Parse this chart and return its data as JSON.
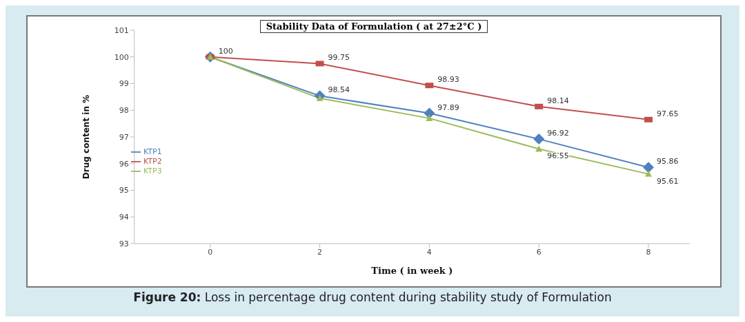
{
  "chart_data": {
    "type": "line",
    "title": "Stability Data of Formulation ( at 27±2°C )",
    "xlabel": "Time ( in week )",
    "ylabel": "Drug content in %",
    "categories": [
      "0",
      "2",
      "4",
      "6",
      "8"
    ],
    "ylim": [
      93,
      101
    ],
    "yticks": [
      93,
      94,
      95,
      96,
      97,
      98,
      99,
      100,
      101
    ],
    "grid": false,
    "legend": "left",
    "series": [
      {
        "name": "KTP1",
        "color": "#4f81bd",
        "marker": "diamond",
        "values": [
          100,
          98.54,
          97.89,
          96.92,
          95.86
        ],
        "value_labels": [
          null,
          "98.54",
          "97.89",
          "96.92",
          "95.86"
        ]
      },
      {
        "name": "KTP2",
        "color": "#c0504d",
        "marker": "square",
        "values": [
          100,
          99.75,
          98.93,
          98.14,
          97.65
        ],
        "value_labels": [
          "100",
          "99.75",
          "98.93",
          "98.14",
          "97.65"
        ]
      },
      {
        "name": "KTP3",
        "color": "#9bbb59",
        "marker": "triangle",
        "values": [
          100,
          98.45,
          97.7,
          96.55,
          95.61
        ],
        "value_labels": [
          null,
          null,
          null,
          "96.55",
          "95.61"
        ]
      }
    ],
    "annotations": [
      "Figure 20: Loss in percentage drug content during stability study of Formulation"
    ]
  }
}
